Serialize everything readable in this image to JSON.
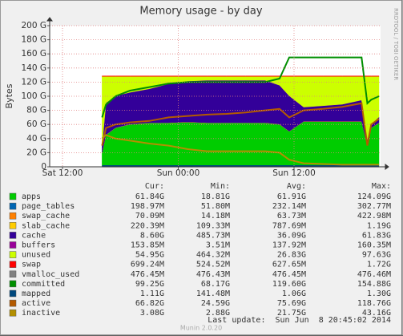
{
  "chart_data": {
    "type": "area",
    "title": "Memory usage - by day",
    "y_label": "Bytes",
    "watermark": "RRDTOOL / TOBI OETIKER",
    "footer": "Munin 2.0.20",
    "last_update": "Last update:  Sun Jun  8 20:45:02 2014",
    "stat_headers": [
      "Cur:",
      "Min:",
      "Avg:",
      "Max:"
    ],
    "grid": true,
    "xlim": [
      10.67,
      44.97
    ],
    "xticks": [
      {
        "value": 12,
        "label": "Sat 12:00"
      },
      {
        "value": 24,
        "label": "Sun 00:00"
      },
      {
        "value": 36,
        "label": "Sun 12:00"
      }
    ],
    "ylim": [
      0,
      200
    ],
    "yticks": [
      {
        "value": 0,
        "label": "0"
      },
      {
        "value": 20,
        "label": "20 G"
      },
      {
        "value": 40,
        "label": "40 G"
      },
      {
        "value": 60,
        "label": "60 G"
      },
      {
        "value": 80,
        "label": "80 G"
      },
      {
        "value": 100,
        "label": "100 G"
      },
      {
        "value": 120,
        "label": "120 G"
      },
      {
        "value": 140,
        "label": "140 G"
      },
      {
        "value": 160,
        "label": "160 G"
      },
      {
        "value": 180,
        "label": "180 G"
      },
      {
        "value": 200,
        "label": "200 G"
      }
    ],
    "x": [
      16.1,
      16.5,
      17.5,
      19,
      21,
      23,
      25,
      27,
      29,
      31,
      33,
      34.5,
      35.5,
      37,
      39,
      41,
      43,
      43.6,
      44,
      44.8
    ],
    "series": [
      {
        "name": "apps",
        "color": "#00cc00",
        "style": "area",
        "stats": [
          "61.84G",
          "18.81G",
          "61.91G",
          "124.09G"
        ],
        "values": [
          20,
          45,
          55,
          60,
          62,
          62,
          63,
          62,
          62,
          62,
          62,
          60,
          50,
          64,
          64,
          64,
          64,
          30,
          55,
          62
        ]
      },
      {
        "name": "page_tables",
        "color": "#0066b3",
        "style": "area",
        "stats": [
          "198.97M",
          "51.80M",
          "232.14M",
          "302.77M"
        ],
        "values": [
          0.2,
          0.2,
          0.2,
          0.2,
          0.2,
          0.2,
          0.2,
          0.2,
          0.2,
          0.2,
          0.2,
          0.2,
          0.2,
          0.2,
          0.2,
          0.2,
          0.2,
          0.2,
          0.2,
          0.2
        ]
      },
      {
        "name": "swap_cache",
        "color": "#ff8000",
        "style": "area",
        "stats": [
          "70.09M",
          "14.18M",
          "63.73M",
          "422.98M"
        ],
        "values": [
          0.07,
          0.07,
          0.07,
          0.07,
          0.07,
          0.07,
          0.07,
          0.07,
          0.07,
          0.07,
          0.07,
          0.07,
          0.07,
          0.07,
          0.07,
          0.07,
          0.07,
          0.07,
          0.07,
          0.07
        ]
      },
      {
        "name": "slab_cache",
        "color": "#ffcc00",
        "style": "area",
        "stats": [
          "220.39M",
          "109.33M",
          "787.69M",
          "1.19G"
        ],
        "values": [
          0.2,
          0.2,
          0.2,
          0.2,
          0.2,
          0.2,
          0.2,
          0.2,
          0.2,
          0.2,
          0.2,
          0.2,
          0.2,
          0.2,
          0.2,
          0.2,
          0.2,
          0.2,
          0.2,
          0.2
        ]
      },
      {
        "name": "cache",
        "color": "#330099",
        "style": "area",
        "stats": [
          "8.60G",
          "485.73M",
          "36.09G",
          "61.83G"
        ],
        "values": [
          10,
          45,
          45,
          45,
          48,
          55,
          58,
          60,
          60,
          60,
          60,
          55,
          50,
          20,
          22,
          24,
          30,
          8,
          5,
          8
        ]
      },
      {
        "name": "buffers",
        "color": "#990099",
        "style": "area",
        "stats": [
          "153.85M",
          "3.51M",
          "137.92M",
          "160.35M"
        ],
        "values": [
          0.15,
          0.15,
          0.15,
          0.15,
          0.15,
          0.15,
          0.15,
          0.15,
          0.15,
          0.15,
          0.15,
          0.15,
          0.15,
          0.15,
          0.15,
          0.15,
          0.15,
          0.15,
          0.15,
          0.15
        ]
      },
      {
        "name": "unused",
        "color": "#ccff00",
        "style": "area",
        "stats": [
          "54.95G",
          "464.32M",
          "26.83G",
          "97.63G"
        ],
        "values": [
          97.4,
          37.4,
          27.4,
          22.4,
          17.4,
          10.4,
          6.4,
          5.4,
          5.4,
          5.4,
          5.4,
          12.4,
          27.4,
          43.4,
          41.4,
          39.4,
          33.4,
          89.4,
          67.4,
          57.4
        ]
      },
      {
        "name": "swap",
        "color": "#ff0000",
        "style": "area",
        "stats": [
          "699.24M",
          "524.52M",
          "627.65M",
          "1.72G"
        ],
        "values": [
          0.7,
          0.7,
          0.7,
          0.7,
          0.7,
          0.7,
          0.7,
          0.7,
          0.7,
          0.7,
          0.7,
          0.7,
          0.7,
          0.7,
          0.7,
          0.7,
          0.7,
          0.7,
          0.7,
          0.7
        ]
      },
      {
        "name": "vmalloc_used",
        "color": "#808080",
        "style": "line",
        "stats": [
          "476.45M",
          "476.43M",
          "476.45M",
          "476.46M"
        ],
        "values": [
          0.48,
          0.48,
          0.48,
          0.48,
          0.48,
          0.48,
          0.48,
          0.48,
          0.48,
          0.48,
          0.48,
          0.48,
          0.48,
          0.48,
          0.48,
          0.48,
          0.48,
          0.48,
          0.48,
          0.48
        ]
      },
      {
        "name": "committed",
        "color": "#008f00",
        "style": "line",
        "stats": [
          "99.25G",
          "68.17G",
          "119.60G",
          "154.88G"
        ],
        "values": [
          70,
          88,
          100,
          108,
          113,
          118,
          120,
          120,
          120,
          120,
          120,
          125,
          155,
          155,
          155,
          155,
          155,
          90,
          95,
          100
        ]
      },
      {
        "name": "mapped",
        "color": "#00487d",
        "style": "line",
        "stats": [
          "1.11G",
          "141.48M",
          "1.06G",
          "1.30G"
        ],
        "values": [
          1.1,
          1.1,
          1.1,
          1.1,
          1.1,
          1.1,
          1.1,
          1.1,
          1.1,
          1.1,
          1.1,
          1.1,
          1.1,
          1.1,
          1.1,
          1.1,
          1.1,
          1.1,
          1.1,
          1.1
        ]
      },
      {
        "name": "active",
        "color": "#b35a00",
        "style": "line",
        "stats": [
          "66.82G",
          "24.59G",
          "75.69G",
          "118.76G"
        ],
        "values": [
          30,
          55,
          60,
          63,
          65,
          70,
          72,
          74,
          75,
          77,
          80,
          82,
          70,
          80,
          82,
          85,
          90,
          30,
          60,
          68
        ]
      },
      {
        "name": "inactive",
        "color": "#b38f00",
        "style": "line",
        "stats": [
          "3.08G",
          "2.88G",
          "21.75G",
          "43.16G"
        ],
        "values": [
          40,
          45,
          40,
          37,
          33,
          30,
          25,
          22,
          22,
          22,
          22,
          20,
          10,
          5,
          4,
          3,
          3,
          3,
          3,
          3
        ]
      }
    ]
  }
}
